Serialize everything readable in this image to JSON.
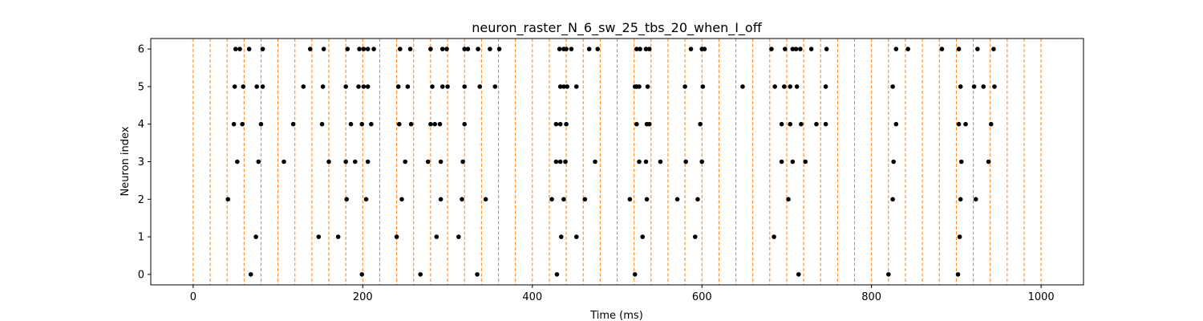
{
  "chart_data": {
    "type": "scatter",
    "title": "neuron_raster_N_6_sw_25_tbs_20_when_I_off",
    "xlabel": "Time (ms)",
    "ylabel": "Neuron index",
    "xlim": [
      -50,
      1050
    ],
    "ylim": [
      -0.28,
      6.28
    ],
    "x_ticks": [
      0,
      200,
      400,
      600,
      800,
      1000
    ],
    "y_ticks": [
      0,
      1,
      2,
      3,
      4,
      5,
      6
    ],
    "grid": false,
    "marker_color": "#000000",
    "vline_color": "#ff7f0e",
    "vline_style": "dashed",
    "vlines_x": [
      0,
      20,
      40,
      60,
      80,
      100,
      120,
      140,
      160,
      180,
      200,
      220,
      240,
      260,
      280,
      300,
      320,
      340,
      360,
      380,
      400,
      420,
      440,
      460,
      480,
      500,
      520,
      540,
      560,
      580,
      600,
      620,
      640,
      660,
      680,
      700,
      720,
      740,
      760,
      780,
      800,
      820,
      840,
      860,
      880,
      900,
      920,
      940,
      960,
      980,
      1000
    ],
    "series": [
      {
        "neuron": 0,
        "spikes": [
          68,
          199,
          268,
          335,
          429,
          521,
          714,
          820,
          902
        ]
      },
      {
        "neuron": 1,
        "spikes": [
          74,
          148,
          171,
          240,
          287,
          313,
          434,
          452,
          530,
          592,
          685,
          904
        ]
      },
      {
        "neuron": 2,
        "spikes": [
          41,
          181,
          204,
          246,
          292,
          317,
          345,
          423,
          437,
          462,
          515,
          535,
          571,
          595,
          702,
          825,
          905,
          923
        ]
      },
      {
        "neuron": 3,
        "spikes": [
          52,
          77,
          107,
          160,
          180,
          191,
          206,
          250,
          277,
          292,
          318,
          428,
          433,
          439,
          474,
          526,
          534,
          551,
          581,
          600,
          694,
          707,
          722,
          826,
          906,
          938
        ]
      },
      {
        "neuron": 4,
        "spikes": [
          48,
          58,
          80,
          118,
          152,
          186,
          199,
          210,
          243,
          257,
          280,
          285,
          291,
          320,
          428,
          433,
          440,
          523,
          535,
          538,
          598,
          694,
          704,
          717,
          735,
          746,
          829,
          903,
          911,
          941
        ]
      },
      {
        "neuron": 5,
        "spikes": [
          49,
          59,
          75,
          82,
          130,
          153,
          180,
          195,
          201,
          206,
          242,
          253,
          282,
          294,
          300,
          320,
          338,
          356,
          433,
          437,
          441,
          452,
          521,
          523,
          526,
          536,
          580,
          601,
          648,
          686,
          697,
          704,
          712,
          746,
          825,
          905,
          921,
          932,
          945
        ]
      },
      {
        "neuron": 6,
        "spikes": [
          50,
          55,
          66,
          82,
          138,
          154,
          182,
          196,
          201,
          206,
          213,
          244,
          256,
          280,
          294,
          299,
          320,
          324,
          336,
          350,
          361,
          432,
          437,
          440,
          446,
          467,
          477,
          523,
          527,
          534,
          538,
          587,
          600,
          603,
          682,
          698,
          707,
          711,
          716,
          729,
          747,
          829,
          843,
          883,
          903,
          925,
          944
        ]
      }
    ]
  }
}
